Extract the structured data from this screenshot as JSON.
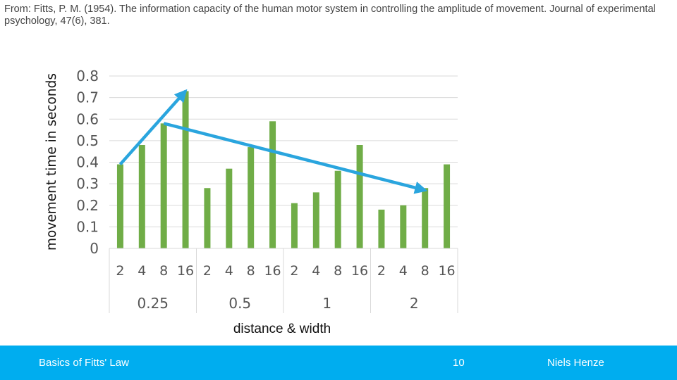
{
  "header": {
    "citation": "From: Fitts, P. M. (1954). The information capacity of the human motor system in controlling the amplitude of movement. Journal of experimental psychology, 47(6), 381."
  },
  "chart_data": {
    "type": "bar",
    "ylabel": "movement time in seconds",
    "xlabel": "distance & width",
    "ylim": [
      0,
      0.8
    ],
    "yticks": [
      "0",
      "0.1",
      "0.2",
      "0.3",
      "0.4",
      "0.5",
      "0.6",
      "0.7",
      "0.8"
    ],
    "grid": true,
    "categories": [
      "2",
      "4",
      "8",
      "16",
      "2",
      "4",
      "8",
      "16",
      "2",
      "4",
      "8",
      "16",
      "2",
      "4",
      "8",
      "16"
    ],
    "groups": [
      "0.25",
      "0.5",
      "1",
      "2"
    ],
    "values": [
      0.39,
      0.48,
      0.58,
      0.73,
      0.28,
      0.37,
      0.47,
      0.59,
      0.21,
      0.26,
      0.36,
      0.48,
      0.18,
      0.2,
      0.28,
      0.39
    ],
    "bar_color": "#70ad47",
    "annotations": [
      {
        "type": "arrow",
        "from_category": 0,
        "from_value": 0.39,
        "to_category": 3,
        "to_value": 0.73
      },
      {
        "type": "arrow",
        "from_category": 2,
        "from_value": 0.58,
        "to_category": 14,
        "to_value": 0.27
      }
    ],
    "arrow_color": "#2aa5de"
  },
  "footer": {
    "title": "Basics of Fitts' Law",
    "page": "10",
    "author": "Niels Henze",
    "color": "#00adef"
  }
}
